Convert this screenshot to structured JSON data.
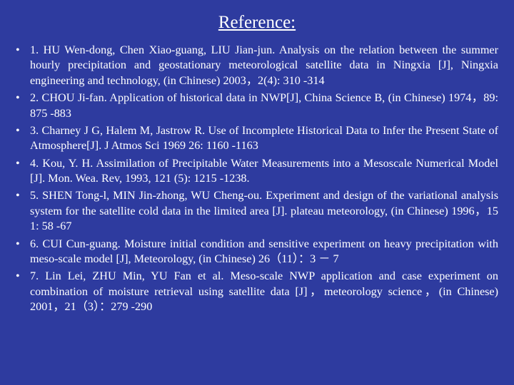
{
  "background_color": "#2e3b9f",
  "text_color": "#ffffff",
  "font_family": "Times New Roman",
  "title": "Reference:",
  "title_fontsize": 25,
  "body_fontsize": 16.2,
  "bullet": "•",
  "references": [
    "1. HU Wen-dong, Chen Xiao-guang, LIU Jian-jun. Analysis on the relation between the summer hourly precipitation and geostationary meteorological satellite data in Ningxia [J], Ningxia engineering and technology, (in Chinese) 2003，2(4): 310 -314",
    "2. CHOU Ji-fan. Application of historical data in NWP[J], China Science B, (in Chinese)  1974，89: 875 -883",
    "3. Charney J G, Halem M, Jastrow R. Use of Incomplete Historical Data to Infer the Present State of Atmosphere[J]. J Atmos Sci 1969 26: 1160 -1163",
    "4. Kou, Y. H. Assimilation of Precipitable Water Measurements into a Mesoscale Numerical Model [J]. Mon. Wea. Rev, 1993, 121 (5): 1215 -1238.",
    "5. SHEN Tong-l, MIN Jin-zhong, WU Cheng-ou. Experiment and design of the variational analysis system for the satellite cold data in the limited area [J]. plateau meteorology, (in Chinese) 1996，15 1: 58 -67",
    "6. CUI Cun-guang. Moisture initial condition and sensitive experiment on heavy precipitation with meso-scale model [J], Meteorology, (in Chinese) 26（11）：3 － 7",
    "7. Lin Lei, ZHU Min, YU Fan et al. Meso-scale NWP application and case experiment on combination of moisture retrieval using satellite data [J]，meteorology science，(in Chinese) 2001，21（3）：279 -290"
  ]
}
